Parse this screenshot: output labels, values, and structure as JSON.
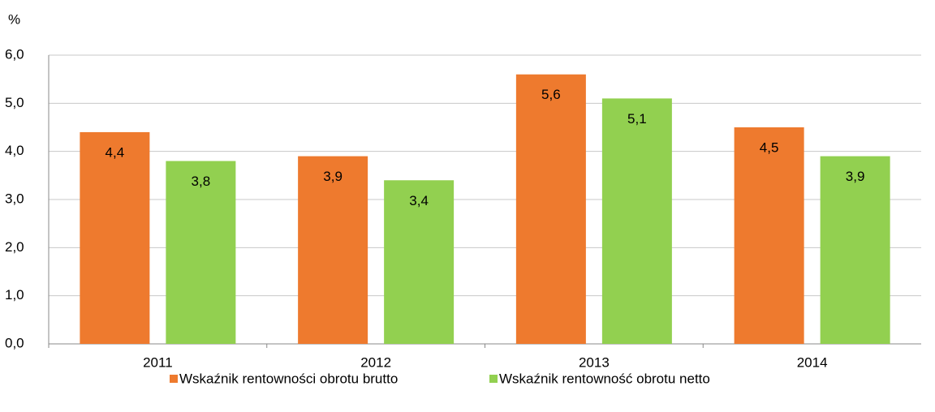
{
  "chart_data": {
    "type": "bar",
    "ylabel": "%",
    "categories": [
      "2011",
      "2012",
      "2013",
      "2014"
    ],
    "series": [
      {
        "name": "Wskaźnik rentowności obrotu brutto",
        "color": "#ee7a2e",
        "values": [
          4.4,
          3.9,
          5.6,
          4.5
        ],
        "value_labels": [
          "4,4",
          "3,9",
          "5,6",
          "4,5"
        ]
      },
      {
        "name": "Wskaźnik rentowność obrotu netto",
        "color": "#92d050",
        "values": [
          3.8,
          3.4,
          5.1,
          3.9
        ],
        "value_labels": [
          "3,8",
          "3,4",
          "5,1",
          "3,9"
        ]
      }
    ],
    "ylim": [
      0,
      6
    ],
    "yticks": [
      {
        "value": 0,
        "label": "0,0"
      },
      {
        "value": 1,
        "label": "1,0"
      },
      {
        "value": 2,
        "label": "2,0"
      },
      {
        "value": 3,
        "label": "3,0"
      },
      {
        "value": 4,
        "label": "4,0"
      },
      {
        "value": 5,
        "label": "5,0"
      },
      {
        "value": 6,
        "label": "6,0"
      }
    ],
    "grid": true,
    "legend": "bottom"
  }
}
